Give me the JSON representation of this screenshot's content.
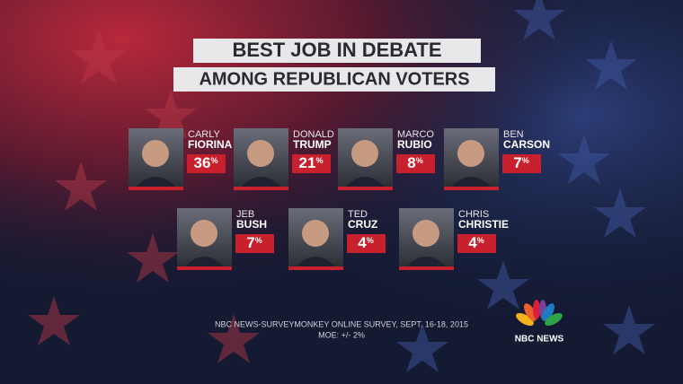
{
  "header": {
    "title": "BEST JOB IN DEBATE",
    "subtitle": "AMONG REPUBLICAN VOTERS"
  },
  "candidates": [
    {
      "first": "CARLY",
      "last": "FIORINA",
      "value": 36,
      "unit": "%"
    },
    {
      "first": "DONALD",
      "last": "TRUMP",
      "value": 21,
      "unit": "%"
    },
    {
      "first": "MARCO",
      "last": "RUBIO",
      "value": 8,
      "unit": "%"
    },
    {
      "first": "BEN",
      "last": "CARSON",
      "value": 7,
      "unit": "%"
    },
    {
      "first": "JEB",
      "last": "BUSH",
      "value": 7,
      "unit": "%"
    },
    {
      "first": "TED",
      "last": "CRUZ",
      "value": 4,
      "unit": "%"
    },
    {
      "first": "CHRIS",
      "last": "CHRISTIE",
      "value": 4,
      "unit": "%"
    }
  ],
  "footer": {
    "source": "NBC NEWS-SURVEYMONKEY ONLINE SURVEY, SEPT. 16-18, 2015",
    "moe": "MOE: +/- 2%",
    "logo": "NBC NEWS"
  }
}
